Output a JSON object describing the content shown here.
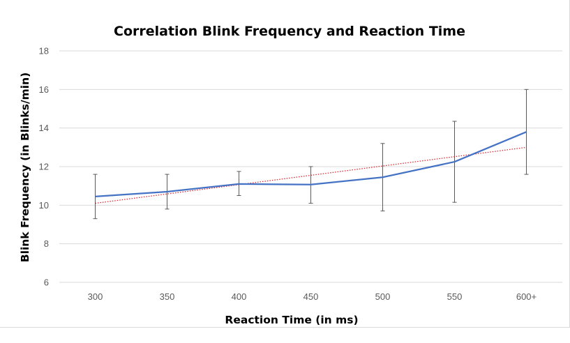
{
  "chart_data": {
    "type": "line",
    "title": "Correlation Blink Frequency and Reaction Time",
    "xlabel": "Reaction Time (in ms)",
    "ylabel": "Blink Frequency (in Blinks/min)",
    "categories": [
      "300",
      "350",
      "400",
      "450",
      "500",
      "550",
      "600+"
    ],
    "ylim": [
      6,
      18
    ],
    "yticks": [
      6,
      8,
      10,
      12,
      14,
      16,
      18
    ],
    "grid": true,
    "legend": "none",
    "series": [
      {
        "values": [
          10.45,
          10.7,
          11.1,
          11.07,
          11.45,
          12.25,
          13.8
        ],
        "error_low": [
          9.3,
          9.8,
          10.5,
          10.1,
          9.7,
          10.15,
          11.6
        ],
        "error_high": [
          11.6,
          11.6,
          11.75,
          12.0,
          13.2,
          14.35,
          16.0
        ],
        "color": "#4472c4"
      }
    ],
    "trendline": {
      "type": "linear",
      "start": 10.1,
      "end": 13.0,
      "color": "#e0202a"
    }
  }
}
